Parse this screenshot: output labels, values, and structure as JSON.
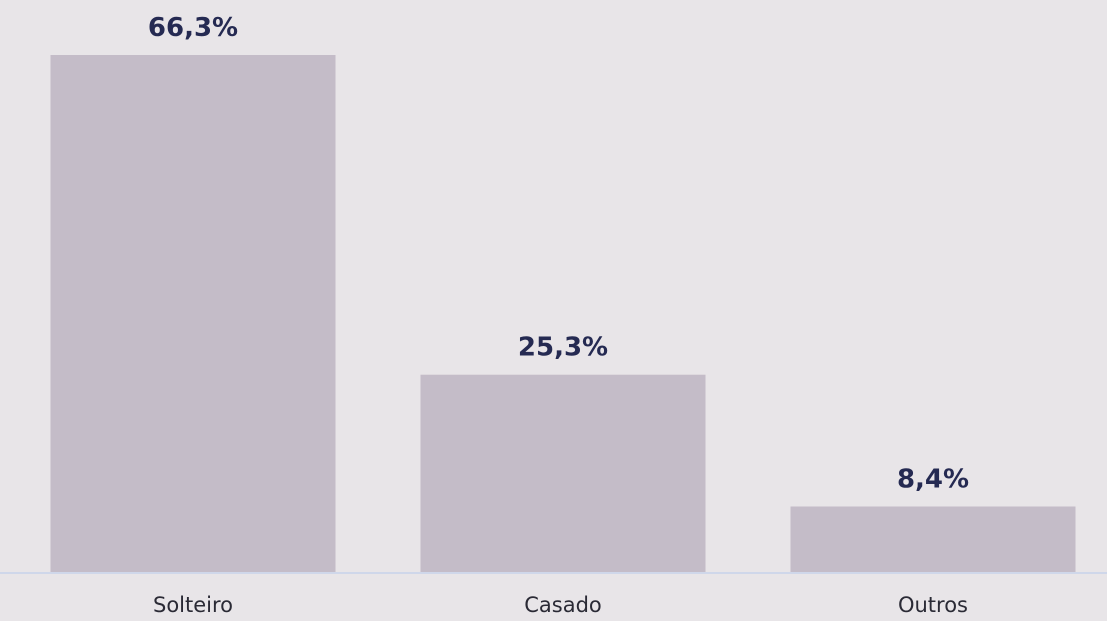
{
  "chart_data": {
    "type": "bar",
    "categories": [
      "Solteiro",
      "Casado",
      "Outros"
    ],
    "values": [
      66.3,
      25.3,
      8.4
    ],
    "value_labels": [
      "66,3%",
      "25,3%",
      "8,4%"
    ],
    "ylim": [
      0,
      66.3
    ],
    "grid": false,
    "legend": "none",
    "colors": {
      "background": "#e8e5e8",
      "bar": "#c4bcc8",
      "axis": "#cfd7ea",
      "value_label": "#252a52",
      "category_label": "#2a2a35"
    }
  }
}
